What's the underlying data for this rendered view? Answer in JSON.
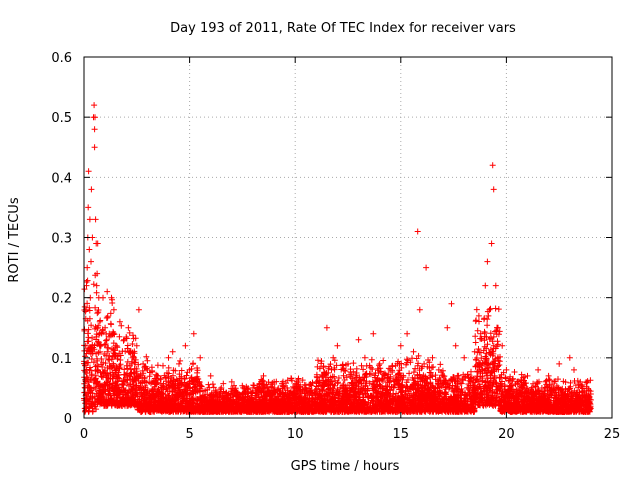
{
  "chart_data": {
    "type": "scatter",
    "title": "Day 193 of 2011, Rate Of TEC Index for receiver vars",
    "xlabel": "GPS time / hours",
    "ylabel": "ROTI / TECUs",
    "xlim": [
      0,
      25
    ],
    "ylim": [
      0,
      0.6
    ],
    "x_ticks": [
      0,
      5,
      10,
      15,
      20,
      25
    ],
    "x_tick_labels": [
      "0",
      "5",
      "10",
      "15",
      "20",
      "25"
    ],
    "y_ticks": [
      0,
      0.1,
      0.2,
      0.3,
      0.4,
      0.5,
      0.6
    ],
    "y_tick_labels": [
      "0",
      "0.1",
      "0.2",
      "0.3",
      "0.4",
      "0.5",
      "0.6"
    ],
    "grid": true,
    "marker": "plus",
    "series": [
      {
        "name": "ROTI",
        "color": "#ff0000",
        "points": [
          [
            0.05,
            0.05
          ],
          [
            0.08,
            0.12
          ],
          [
            0.1,
            0.18
          ],
          [
            0.12,
            0.22
          ],
          [
            0.15,
            0.25
          ],
          [
            0.18,
            0.3
          ],
          [
            0.2,
            0.35
          ],
          [
            0.22,
            0.41
          ],
          [
            0.25,
            0.28
          ],
          [
            0.28,
            0.33
          ],
          [
            0.3,
            0.2
          ],
          [
            0.33,
            0.26
          ],
          [
            0.35,
            0.38
          ],
          [
            0.4,
            0.3
          ],
          [
            0.45,
            0.5
          ],
          [
            0.48,
            0.52
          ],
          [
            0.5,
            0.48
          ],
          [
            0.5,
            0.45
          ],
          [
            0.52,
            0.5
          ],
          [
            0.55,
            0.33
          ],
          [
            0.58,
            0.29
          ],
          [
            0.6,
            0.22
          ],
          [
            0.62,
            0.24
          ],
          [
            0.65,
            0.29
          ],
          [
            0.7,
            0.2
          ],
          [
            0.75,
            0.16
          ],
          [
            0.8,
            0.12
          ],
          [
            0.9,
            0.2
          ],
          [
            1.0,
            0.15
          ],
          [
            1.1,
            0.21
          ],
          [
            1.2,
            0.14
          ],
          [
            1.3,
            0.2
          ],
          [
            1.5,
            0.12
          ],
          [
            1.7,
            0.16
          ],
          [
            1.9,
            0.13
          ],
          [
            2.1,
            0.15
          ],
          [
            2.3,
            0.1
          ],
          [
            2.5,
            0.12
          ],
          [
            2.6,
            0.18
          ],
          [
            2.8,
            0.09
          ],
          [
            3.0,
            0.08
          ],
          [
            3.3,
            0.06
          ],
          [
            3.5,
            0.07
          ],
          [
            4.0,
            0.1
          ],
          [
            4.2,
            0.11
          ],
          [
            4.5,
            0.09
          ],
          [
            4.8,
            0.12
          ],
          [
            5.0,
            0.08
          ],
          [
            5.2,
            0.14
          ],
          [
            5.5,
            0.1
          ],
          [
            6.0,
            0.07
          ],
          [
            6.5,
            0.05
          ],
          [
            7.0,
            0.06
          ],
          [
            7.5,
            0.04
          ],
          [
            8.0,
            0.05
          ],
          [
            8.5,
            0.07
          ],
          [
            9.0,
            0.06
          ],
          [
            9.5,
            0.05
          ],
          [
            10.0,
            0.04
          ],
          [
            10.5,
            0.05
          ],
          [
            11.0,
            0.06
          ],
          [
            11.5,
            0.15
          ],
          [
            11.8,
            0.1
          ],
          [
            12.0,
            0.12
          ],
          [
            12.5,
            0.09
          ],
          [
            13.0,
            0.13
          ],
          [
            13.3,
            0.1
          ],
          [
            13.7,
            0.14
          ],
          [
            14.0,
            0.09
          ],
          [
            14.5,
            0.08
          ],
          [
            15.0,
            0.12
          ],
          [
            15.3,
            0.14
          ],
          [
            15.6,
            0.11
          ],
          [
            15.8,
            0.31
          ],
          [
            15.9,
            0.18
          ],
          [
            16.2,
            0.25
          ],
          [
            16.5,
            0.1
          ],
          [
            16.8,
            0.08
          ],
          [
            17.2,
            0.15
          ],
          [
            17.4,
            0.19
          ],
          [
            17.6,
            0.12
          ],
          [
            18.0,
            0.1
          ],
          [
            18.5,
            0.11
          ],
          [
            19.0,
            0.22
          ],
          [
            19.1,
            0.26
          ],
          [
            19.2,
            0.18
          ],
          [
            19.3,
            0.29
          ],
          [
            19.35,
            0.42
          ],
          [
            19.4,
            0.38
          ],
          [
            19.5,
            0.22
          ],
          [
            19.6,
            0.15
          ],
          [
            19.8,
            0.12
          ],
          [
            20.0,
            0.08
          ],
          [
            20.5,
            0.06
          ],
          [
            21.0,
            0.07
          ],
          [
            21.5,
            0.08
          ],
          [
            22.0,
            0.07
          ],
          [
            22.5,
            0.09
          ],
          [
            23.0,
            0.1
          ],
          [
            23.2,
            0.08
          ],
          [
            23.5,
            0.06
          ],
          [
            23.8,
            0.04
          ],
          [
            24.0,
            0.03
          ]
        ],
        "background_density": [
          {
            "x0": 0.0,
            "x1": 0.6,
            "ymin": 0.01,
            "ymax": 0.26
          },
          {
            "x0": 0.6,
            "x1": 1.5,
            "ymin": 0.02,
            "ymax": 0.22
          },
          {
            "x0": 1.5,
            "x1": 2.5,
            "ymin": 0.02,
            "ymax": 0.16
          },
          {
            "x0": 2.5,
            "x1": 3.5,
            "ymin": 0.01,
            "ymax": 0.11
          },
          {
            "x0": 3.5,
            "x1": 5.5,
            "ymin": 0.01,
            "ymax": 0.1
          },
          {
            "x0": 5.5,
            "x1": 8.0,
            "ymin": 0.01,
            "ymax": 0.06
          },
          {
            "x0": 8.0,
            "x1": 11.0,
            "ymin": 0.01,
            "ymax": 0.07
          },
          {
            "x0": 11.0,
            "x1": 14.5,
            "ymin": 0.01,
            "ymax": 0.1
          },
          {
            "x0": 14.5,
            "x1": 16.5,
            "ymin": 0.01,
            "ymax": 0.11
          },
          {
            "x0": 16.5,
            "x1": 18.5,
            "ymin": 0.01,
            "ymax": 0.09
          },
          {
            "x0": 18.5,
            "x1": 19.7,
            "ymin": 0.02,
            "ymax": 0.2
          },
          {
            "x0": 19.7,
            "x1": 21.0,
            "ymin": 0.01,
            "ymax": 0.08
          },
          {
            "x0": 21.0,
            "x1": 24.0,
            "ymin": 0.01,
            "ymax": 0.07
          }
        ]
      }
    ]
  }
}
